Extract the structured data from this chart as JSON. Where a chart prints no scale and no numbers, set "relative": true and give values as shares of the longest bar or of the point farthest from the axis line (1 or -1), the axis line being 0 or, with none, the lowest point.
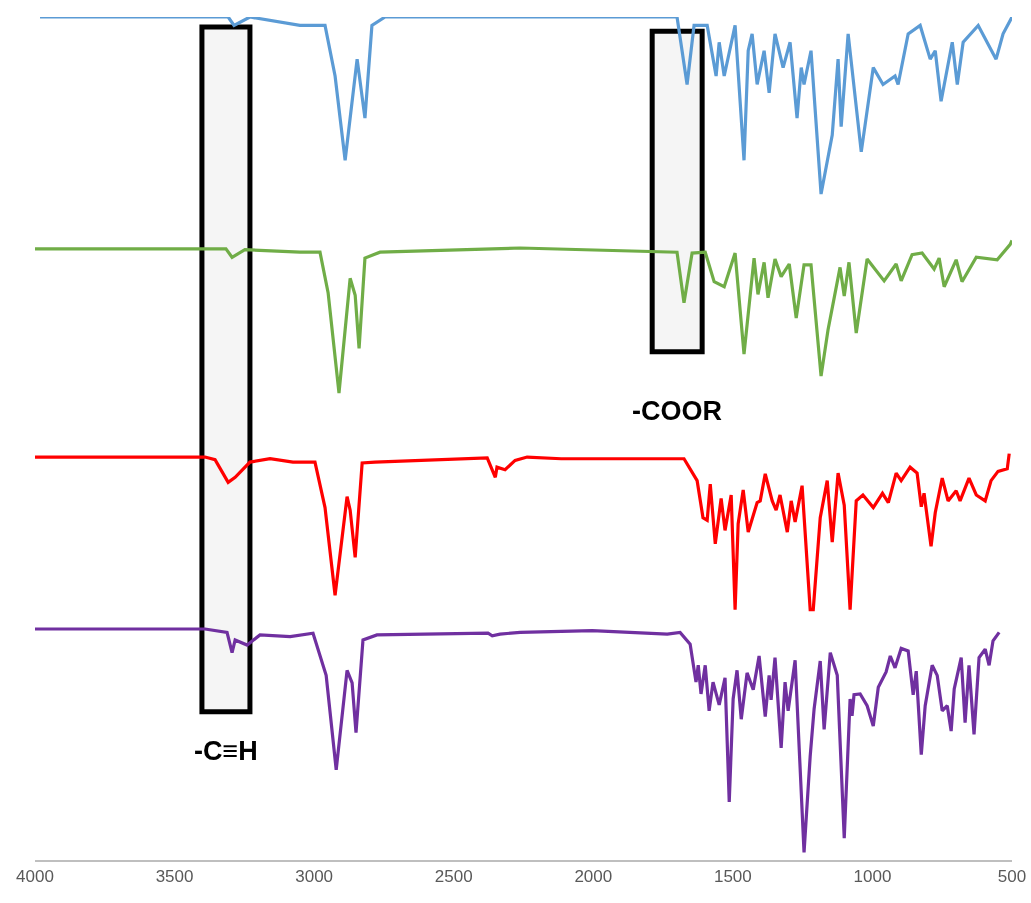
{
  "chart_data": {
    "type": "line",
    "relative": true,
    "xlim": [
      4000,
      500
    ],
    "xticks": [
      4000,
      3500,
      3000,
      2500,
      2000,
      1500,
      1000,
      500
    ],
    "grid": false,
    "marker": "none",
    "line_style": "solid",
    "bands": [
      {
        "axis": "x",
        "from": 3402,
        "to": 3230,
        "label": "-C≡H",
        "color": "#000000"
      },
      {
        "axis": "x",
        "from": 1789,
        "to": 1610,
        "label": "-COOR",
        "color": "#000000"
      }
    ],
    "series": [
      {
        "color": "#5b9bd5",
        "x": [
          3982,
          3308,
          3287,
          3230,
          3051,
          2961,
          2925,
          2889,
          2846,
          2818,
          2793,
          2746,
          2262,
          1700,
          1664,
          1639,
          1592,
          1560,
          1549,
          1531,
          1492,
          1460,
          1445,
          1431,
          1413,
          1388,
          1370,
          1349,
          1320,
          1295,
          1270,
          1255,
          1245,
          1220,
          1184,
          1144,
          1123,
          1112,
          1087,
          1040,
          997,
          962,
          919,
          908,
          872,
          829,
          793,
          775,
          754,
          714,
          696,
          675,
          621,
          557,
          532,
          500
        ],
        "values": [
          1.0,
          1.0,
          0.99,
          1.0,
          0.99,
          0.99,
          0.93,
          0.83,
          0.95,
          0.88,
          0.99,
          1.0,
          1.0,
          1.0,
          0.92,
          0.99,
          0.99,
          0.93,
          0.97,
          0.93,
          0.99,
          0.83,
          0.96,
          0.98,
          0.92,
          0.96,
          0.91,
          0.98,
          0.94,
          0.97,
          0.88,
          0.94,
          0.92,
          0.96,
          0.79,
          0.86,
          0.95,
          0.87,
          0.98,
          0.84,
          0.94,
          0.92,
          0.93,
          0.92,
          0.98,
          0.99,
          0.95,
          0.96,
          0.9,
          0.97,
          0.92,
          0.97,
          0.99,
          0.95,
          0.98,
          1.0
        ]
      },
      {
        "color": "#70ad47",
        "x": [
          4000,
          3337,
          3316,
          3294,
          3248,
          3051,
          2979,
          2950,
          2911,
          2871,
          2853,
          2839,
          2818,
          2764,
          2262,
          1700,
          1675,
          1646,
          1599,
          1567,
          1531,
          1492,
          1460,
          1424,
          1410,
          1388,
          1374,
          1349,
          1327,
          1298,
          1273,
          1245,
          1220,
          1184,
          1159,
          1116,
          1101,
          1084,
          1058,
          1019,
          958,
          915,
          897,
          858,
          822,
          779,
          761,
          743,
          700,
          679,
          628,
          553,
          507,
          500
        ],
        "values": [
          0.725,
          0.725,
          0.725,
          0.715,
          0.724,
          0.721,
          0.721,
          0.673,
          0.554,
          0.69,
          0.67,
          0.607,
          0.714,
          0.721,
          0.726,
          0.721,
          0.661,
          0.72,
          0.721,
          0.686,
          0.68,
          0.72,
          0.6,
          0.714,
          0.671,
          0.709,
          0.667,
          0.713,
          0.692,
          0.707,
          0.643,
          0.706,
          0.706,
          0.574,
          0.629,
          0.703,
          0.669,
          0.709,
          0.625,
          0.713,
          0.687,
          0.707,
          0.687,
          0.718,
          0.72,
          0.701,
          0.714,
          0.68,
          0.712,
          0.686,
          0.715,
          0.712,
          0.73,
          0.735
        ]
      },
      {
        "color": "#ff0000",
        "x": [
          4000,
          3391,
          3355,
          3308,
          3283,
          3230,
          3158,
          3076,
          2997,
          2961,
          2925,
          2882,
          2871,
          2853,
          2828,
          2782,
          2380,
          2351,
          2345,
          2316,
          2280,
          2237,
          2115,
          1675,
          1628,
          1607,
          1592,
          1581,
          1563,
          1542,
          1528,
          1506,
          1492,
          1481,
          1463,
          1445,
          1413,
          1402,
          1384,
          1359,
          1345,
          1331,
          1305,
          1291,
          1277,
          1252,
          1223,
          1212,
          1187,
          1162,
          1144,
          1123,
          1101,
          1080,
          1058,
          1034,
          997,
          964,
          943,
          915,
          897,
          865,
          840,
          825,
          815,
          790,
          775,
          750,
          729,
          700,
          686,
          654,
          628,
          596,
          575,
          550,
          517,
          510
        ],
        "values": [
          0.478,
          0.478,
          0.475,
          0.448,
          0.454,
          0.472,
          0.476,
          0.472,
          0.472,
          0.418,
          0.314,
          0.431,
          0.415,
          0.359,
          0.471,
          0.472,
          0.477,
          0.454,
          0.466,
          0.463,
          0.474,
          0.478,
          0.476,
          0.476,
          0.45,
          0.406,
          0.403,
          0.446,
          0.375,
          0.429,
          0.391,
          0.433,
          0.297,
          0.399,
          0.439,
          0.389,
          0.424,
          0.426,
          0.458,
          0.426,
          0.415,
          0.433,
          0.389,
          0.426,
          0.401,
          0.444,
          0.297,
          0.297,
          0.406,
          0.45,
          0.377,
          0.459,
          0.421,
          0.297,
          0.426,
          0.433,
          0.418,
          0.435,
          0.424,
          0.459,
          0.45,
          0.466,
          0.459,
          0.419,
          0.435,
          0.372,
          0.412,
          0.453,
          0.426,
          0.438,
          0.426,
          0.453,
          0.433,
          0.426,
          0.45,
          0.461,
          0.464,
          0.482
        ]
      },
      {
        "color": "#7030a0",
        "x": [
          4000,
          3391,
          3312,
          3294,
          3283,
          3240,
          3194,
          3086,
          3004,
          2957,
          2921,
          2882,
          2864,
          2850,
          2825,
          2775,
          2377,
          2362,
          2334,
          2262,
          2004,
          1735,
          1689,
          1653,
          1632,
          1624,
          1614,
          1599,
          1585,
          1571,
          1549,
          1528,
          1513,
          1499,
          1485,
          1470,
          1449,
          1427,
          1406,
          1384,
          1370,
          1363,
          1349,
          1327,
          1313,
          1302,
          1277,
          1245,
          1223,
          1209,
          1187,
          1173,
          1151,
          1126,
          1101,
          1080,
          1073,
          1066,
          1044,
          1019,
          997,
          979,
          951,
          936,
          919,
          897,
          872,
          854,
          843,
          825,
          811,
          786,
          768,
          750,
          732,
          718,
          707,
          682,
          668,
          654,
          636,
          618,
          596,
          582,
          568,
          546
        ],
        "values": [
          0.274,
          0.274,
          0.27,
          0.246,
          0.261,
          0.255,
          0.267,
          0.265,
          0.269,
          0.219,
          0.107,
          0.225,
          0.21,
          0.151,
          0.261,
          0.267,
          0.269,
          0.266,
          0.268,
          0.27,
          0.272,
          0.268,
          0.27,
          0.256,
          0.211,
          0.231,
          0.197,
          0.231,
          0.177,
          0.211,
          0.184,
          0.216,
          0.069,
          0.191,
          0.225,
          0.167,
          0.222,
          0.202,
          0.242,
          0.17,
          0.219,
          0.19,
          0.24,
          0.133,
          0.211,
          0.177,
          0.237,
          0.009,
          0.123,
          0.179,
          0.236,
          0.155,
          0.246,
          0.219,
          0.026,
          0.191,
          0.171,
          0.196,
          0.197,
          0.183,
          0.159,
          0.205,
          0.223,
          0.242,
          0.228,
          0.251,
          0.248,
          0.196,
          0.224,
          0.125,
          0.183,
          0.231,
          0.219,
          0.177,
          0.183,
          0.153,
          0.203,
          0.24,
          0.163,
          0.231,
          0.149,
          0.24,
          0.25,
          0.231,
          0.26,
          0.27
        ]
      }
    ]
  }
}
